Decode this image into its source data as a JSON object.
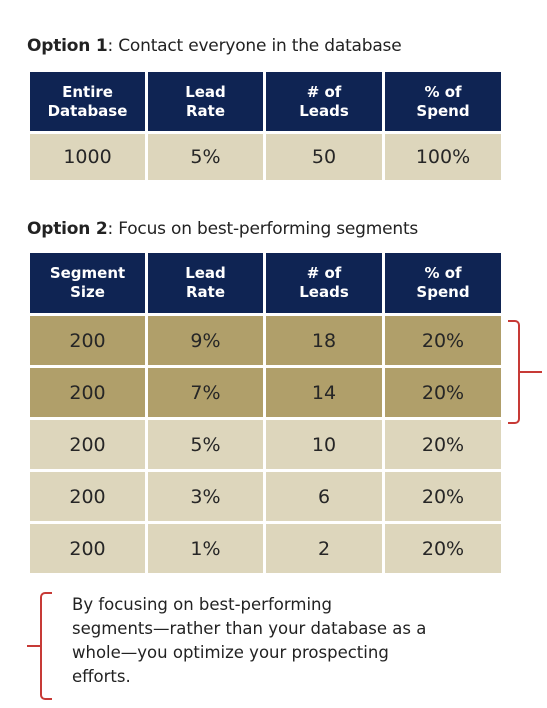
{
  "option1": {
    "label": "Option 1",
    "desc": ": Contact everyone in the database",
    "headers": [
      [
        "Entire",
        "Database"
      ],
      [
        "Lead",
        "Rate"
      ],
      [
        "# of",
        "Leads"
      ],
      [
        "% of",
        "Spend"
      ]
    ],
    "rows": [
      [
        "1000",
        "5%",
        "50",
        "100%"
      ]
    ]
  },
  "option2": {
    "label": "Option 2",
    "desc": ": Focus on best-performing segments",
    "headers": [
      [
        "Segment",
        "Size"
      ],
      [
        "Lead",
        "Rate"
      ],
      [
        "# of",
        "Leads"
      ],
      [
        "% of",
        "Spend"
      ]
    ],
    "rows": [
      [
        "200",
        "9%",
        "18",
        "20%"
      ],
      [
        "200",
        "7%",
        "14",
        "20%"
      ],
      [
        "200",
        "5%",
        "10",
        "20%"
      ],
      [
        "200",
        "3%",
        "6",
        "20%"
      ],
      [
        "200",
        "1%",
        "2",
        "20%"
      ]
    ]
  },
  "footnote": {
    "lines": [
      "By focusing on best-performing",
      "segments—rather than your database as a",
      "whole—you optimize your prospecting",
      "efforts."
    ]
  },
  "colors": {
    "header_bg": "#0f2453",
    "cell_bg": "#ddd6bc",
    "highlight_bg": "#b09f6a",
    "bracket": "#c73a36"
  }
}
